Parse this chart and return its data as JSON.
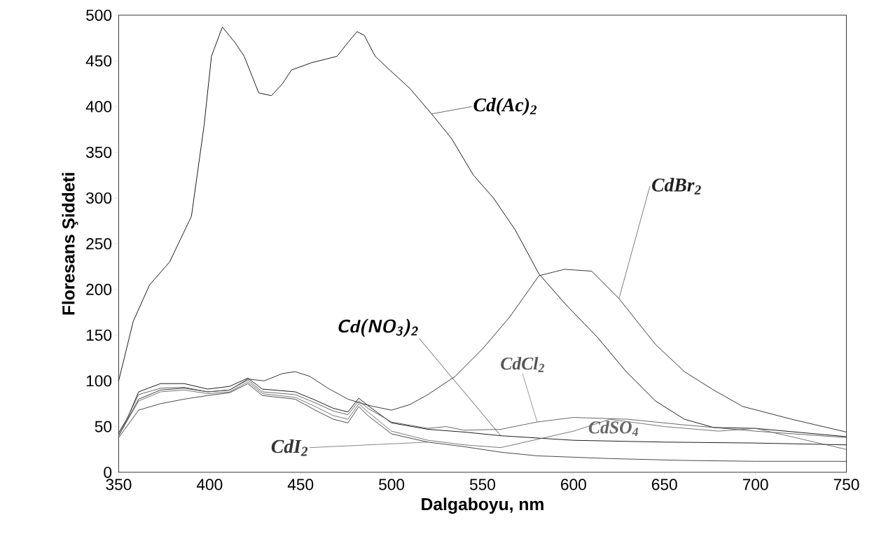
{
  "chart_data": {
    "type": "line",
    "xlabel": "Dalgaboyu, nm",
    "ylabel": "Floresans Şiddeti",
    "xlim": [
      350,
      750
    ],
    "xticks": [
      350,
      400,
      450,
      500,
      550,
      600,
      650,
      700,
      750
    ],
    "ylim": [
      0,
      500
    ],
    "yticks": [
      0,
      50,
      100,
      150,
      200,
      250,
      300,
      350,
      400,
      450,
      500
    ],
    "series": [
      {
        "name": "Cd(Ac)$_{2}$",
        "color": "#000000",
        "x": [
          350,
          358,
          367,
          378,
          390,
          397,
          401,
          407,
          414,
          419,
          425,
          427,
          434,
          440,
          445,
          456,
          464,
          470,
          476,
          481,
          485,
          491,
          499,
          510,
          522,
          533,
          545,
          556,
          568,
          581,
          596,
          613,
          629,
          645,
          661,
          677,
          700,
          750
        ],
        "values": [
          100,
          165,
          205,
          230,
          280,
          380,
          455,
          487,
          470,
          455,
          425,
          415,
          412,
          425,
          440,
          448,
          452,
          455,
          470,
          482,
          478,
          455,
          440,
          420,
          392,
          365,
          325,
          300,
          265,
          217,
          183,
          148,
          110,
          78,
          58,
          49,
          48,
          39
        ]
      },
      {
        "name": "CdBr$_{2}$",
        "color": "#222222",
        "x": [
          350,
          361,
          373,
          386,
          399,
          411,
          421,
          430,
          440,
          447,
          455,
          465,
          476,
          484,
          490,
          500,
          510,
          520,
          535,
          550,
          565,
          581,
          595,
          610,
          625,
          645,
          661,
          677,
          693,
          720,
          750
        ],
        "values": [
          40,
          80,
          90,
          92,
          88,
          90,
          102,
          100,
          108,
          110,
          105,
          92,
          80,
          75,
          72,
          68,
          74,
          85,
          105,
          135,
          170,
          215,
          222,
          220,
          190,
          140,
          110,
          90,
          72,
          58,
          44
        ]
      },
      {
        "name": "Cd(NO$_{3}$)$_{2}$",
        "color": "#000000",
        "x": [
          350,
          355,
          361,
          373,
          386,
          399,
          411,
          421,
          429,
          447,
          458,
          468,
          476,
          482,
          487,
          500,
          520,
          540,
          560,
          600,
          650,
          700,
          750
        ],
        "values": [
          43,
          60,
          88,
          97,
          97,
          91,
          94,
          103,
          91,
          88,
          79,
          70,
          66,
          81,
          73,
          54,
          47,
          44,
          40,
          35,
          33,
          32,
          30
        ]
      },
      {
        "name": "CdCl$_{2}$",
        "color": "#555555",
        "x": [
          350,
          361,
          373,
          386,
          399,
          411,
          421,
          429,
          447,
          458,
          468,
          476,
          482,
          487,
          500,
          520,
          530,
          540,
          560,
          580,
          600,
          630,
          660,
          700,
          750
        ],
        "values": [
          40,
          85,
          92,
          93,
          88,
          90,
          101,
          88,
          85,
          76,
          67,
          63,
          78,
          70,
          55,
          48,
          50,
          46,
          47,
          55,
          60,
          58,
          52,
          45,
          38
        ]
      },
      {
        "name": "CdSO$_{4}$",
        "color": "#666666",
        "x": [
          350,
          361,
          373,
          386,
          399,
          411,
          421,
          429,
          447,
          458,
          468,
          476,
          482,
          487,
          500,
          520,
          540,
          560,
          600,
          620,
          650,
          680,
          700,
          750
        ],
        "values": [
          40,
          78,
          88,
          90,
          86,
          88,
          99,
          86,
          82,
          72,
          62,
          58,
          75,
          66,
          45,
          35,
          30,
          27,
          45,
          58,
          50,
          45,
          48,
          25
        ]
      },
      {
        "name": "CdI$_{2}$",
        "color": "#333333",
        "x": [
          350,
          361,
          373,
          386,
          399,
          411,
          421,
          429,
          447,
          458,
          468,
          476,
          482,
          487,
          500,
          520,
          540,
          560,
          580,
          620,
          660,
          700,
          750
        ],
        "values": [
          38,
          68,
          75,
          80,
          84,
          87,
          97,
          84,
          80,
          68,
          58,
          54,
          72,
          62,
          42,
          33,
          28,
          22,
          18,
          15,
          13,
          12,
          12
        ]
      }
    ]
  }
}
